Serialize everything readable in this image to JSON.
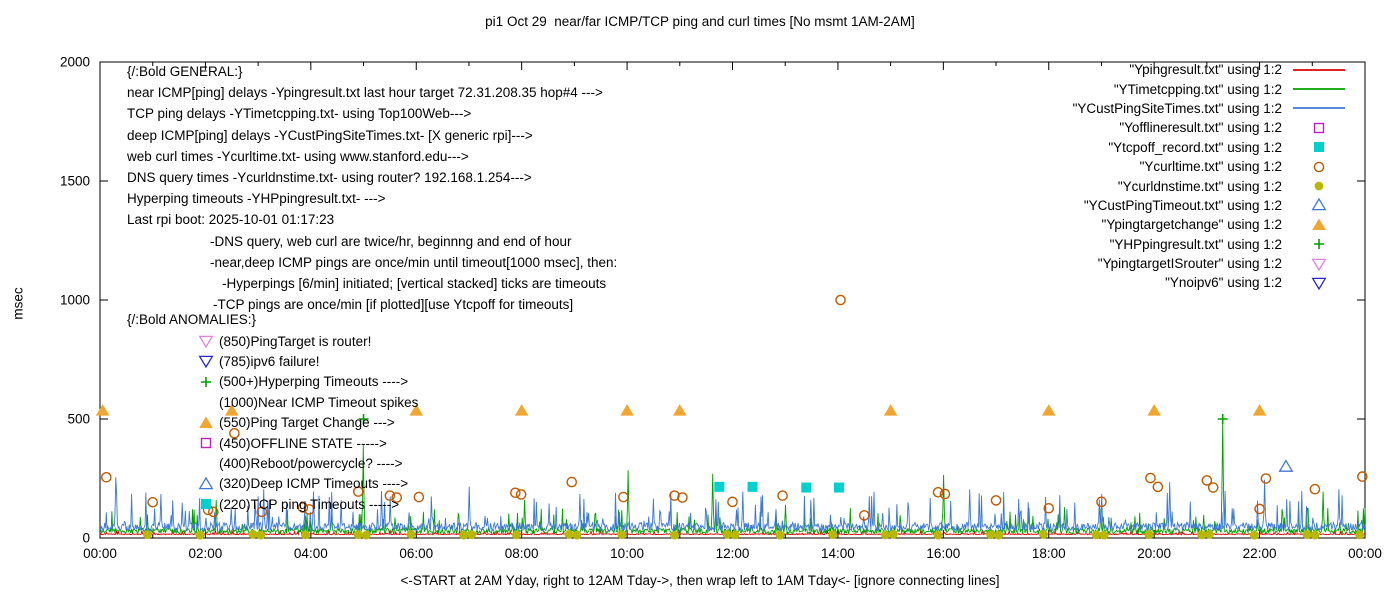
{
  "chart_data": {
    "type": "line+scatter",
    "title": "pi1 Oct 29  near/far ICMP/TCP ping and curl times [No msmt 1AM-2AM]",
    "xlabel": "<-START at 2AM Yday, right to 12AM Tday->, then wrap left to 1AM Tday<- [ignore connecting lines]",
    "ylabel": "msec",
    "x_range_hours": [
      0,
      24
    ],
    "x_tick_labels": [
      "00:00",
      "02:00",
      "04:00",
      "06:00",
      "08:00",
      "10:00",
      "12:00",
      "14:00",
      "16:00",
      "18:00",
      "20:00",
      "22:00",
      "00:00"
    ],
    "ylim": [
      0,
      2000
    ],
    "y_ticks": [
      0,
      500,
      1000,
      1500,
      2000
    ],
    "grid": false,
    "legend_position": "top-right",
    "line_series": [
      {
        "name": "Ypingresult.txt",
        "color": "#e00000",
        "baseline": 14,
        "noise": 8,
        "spikes": []
      },
      {
        "name": "YTimetcpping.txt",
        "color": "#00a000",
        "baseline": 18,
        "noise": 45,
        "spikes": [
          [
            2.2,
            160
          ],
          [
            5.0,
            390
          ],
          [
            8.05,
            160
          ],
          [
            10.02,
            285
          ],
          [
            11.62,
            270
          ],
          [
            13.0,
            140
          ],
          [
            16.0,
            265
          ],
          [
            18.3,
            130
          ],
          [
            21.3,
            500
          ],
          [
            23.2,
            195
          ]
        ]
      },
      {
        "name": "YCustPingSiteTimes.txt",
        "color": "#3c78d8",
        "baseline": 30,
        "noise": 70,
        "spikes": [
          [
            0.3,
            255
          ],
          [
            1.15,
            185
          ],
          [
            3.1,
            205
          ],
          [
            4.05,
            195
          ],
          [
            5.5,
            175
          ],
          [
            7.0,
            215
          ],
          [
            9.1,
            185
          ],
          [
            10.5,
            165
          ],
          [
            12.2,
            195
          ],
          [
            14.6,
            175
          ],
          [
            16.5,
            205
          ],
          [
            19.0,
            185
          ],
          [
            20.3,
            235
          ],
          [
            22.1,
            245
          ],
          [
            23.5,
            205
          ]
        ]
      }
    ],
    "scatter_series": [
      {
        "name": "Yofflineresult.txt",
        "marker": "square-open",
        "color": "#c020c0",
        "points": []
      },
      {
        "name": "Ytcpoff_record.txt",
        "marker": "square-filled",
        "color": "#00d0d0",
        "points": [
          [
            11.75,
            215
          ],
          [
            12.38,
            215
          ],
          [
            13.4,
            212
          ],
          [
            14.02,
            212
          ]
        ]
      },
      {
        "name": "Ycurltime.txt",
        "marker": "circle-open",
        "color": "#c05a00",
        "points": [
          [
            0.12,
            255
          ],
          [
            1.0,
            150
          ],
          [
            2.05,
            118
          ],
          [
            2.15,
            110
          ],
          [
            2.55,
            440
          ],
          [
            3.07,
            110
          ],
          [
            3.85,
            128
          ],
          [
            3.97,
            120
          ],
          [
            4.9,
            195
          ],
          [
            5.5,
            178
          ],
          [
            5.63,
            170
          ],
          [
            6.05,
            172
          ],
          [
            7.88,
            190
          ],
          [
            7.99,
            183
          ],
          [
            8.95,
            235
          ],
          [
            9.93,
            172
          ],
          [
            10.9,
            178
          ],
          [
            11.05,
            170
          ],
          [
            12.0,
            152
          ],
          [
            12.95,
            178
          ],
          [
            14.05,
            1000
          ],
          [
            14.5,
            95
          ],
          [
            15.9,
            192
          ],
          [
            16.03,
            185
          ],
          [
            17.0,
            158
          ],
          [
            18.0,
            125
          ],
          [
            19.0,
            152
          ],
          [
            19.93,
            252
          ],
          [
            20.07,
            215
          ],
          [
            21.0,
            242
          ],
          [
            21.12,
            212
          ],
          [
            22.0,
            122
          ],
          [
            22.12,
            250
          ],
          [
            23.05,
            205
          ],
          [
            23.95,
            258
          ]
        ]
      },
      {
        "name": "Ycurldnstime.txt",
        "marker": "circle-filled",
        "color": "#b8b800",
        "points": [
          [
            0.9,
            14
          ],
          [
            1.9,
            12
          ],
          [
            2.9,
            15
          ],
          [
            3.05,
            12
          ],
          [
            3.9,
            13
          ],
          [
            4.9,
            14
          ],
          [
            5.05,
            12
          ],
          [
            5.9,
            15
          ],
          [
            6.9,
            12
          ],
          [
            7.05,
            14
          ],
          [
            7.9,
            13
          ],
          [
            8.9,
            15
          ],
          [
            9.05,
            12
          ],
          [
            9.9,
            14
          ],
          [
            10.9,
            12
          ],
          [
            11.9,
            15
          ],
          [
            12.05,
            13
          ],
          [
            12.9,
            12
          ],
          [
            13.9,
            14
          ],
          [
            14.9,
            13
          ],
          [
            15.05,
            15
          ],
          [
            15.9,
            12
          ],
          [
            16.9,
            14
          ],
          [
            17.05,
            12
          ],
          [
            17.9,
            15
          ],
          [
            18.9,
            13
          ],
          [
            19.05,
            12
          ],
          [
            19.9,
            14
          ],
          [
            20.9,
            13
          ],
          [
            21.05,
            15
          ],
          [
            21.9,
            12
          ],
          [
            22.9,
            14
          ],
          [
            23.05,
            12
          ],
          [
            23.9,
            13
          ]
        ]
      },
      {
        "name": "YCustPingTimeout.txt",
        "marker": "triangle-open",
        "color": "#3c78d8",
        "points": [
          [
            22.5,
            300
          ]
        ]
      },
      {
        "name": "Ypingtargetchange",
        "marker": "triangle-filled",
        "color": "#f0a630",
        "points": [
          [
            0.05,
            535
          ],
          [
            2.5,
            535
          ],
          [
            6.0,
            535
          ],
          [
            8.0,
            535
          ],
          [
            10.0,
            535
          ],
          [
            11.0,
            535
          ],
          [
            15.0,
            535
          ],
          [
            18.0,
            535
          ],
          [
            20.0,
            535
          ],
          [
            22.0,
            535
          ]
        ]
      },
      {
        "name": "YHPpingresult.txt",
        "marker": "plus",
        "color": "#00a000",
        "points": [
          [
            5.0,
            500
          ],
          [
            21.3,
            500
          ]
        ]
      }
    ]
  },
  "legend": {
    "items": [
      {
        "label": "\"Ypingresult.txt\" using 1:2",
        "marker": "line",
        "color": "#e00000"
      },
      {
        "label": "\"YTimetcpping.txt\" using 1:2",
        "marker": "line",
        "color": "#00a000"
      },
      {
        "label": "\"YCustPingSiteTimes.txt\" using 1:2",
        "marker": "line",
        "color": "#3c78d8"
      },
      {
        "label": "\"Yofflineresult.txt\" using 1:2",
        "marker": "square-open",
        "color": "#c020c0"
      },
      {
        "label": "\"Ytcpoff_record.txt\" using 1:2",
        "marker": "square-filled",
        "color": "#00d0d0"
      },
      {
        "label": "\"Ycurltime.txt\" using 1:2",
        "marker": "circle-open",
        "color": "#c05a00"
      },
      {
        "label": "\"Ycurldnstime.txt\" using 1:2",
        "marker": "circle-filled",
        "color": "#b8b800"
      },
      {
        "label": "\"YCustPingTimeout.txt\" using 1:2",
        "marker": "triangle-open",
        "color": "#3c78d8"
      },
      {
        "label": "\"Ypingtargetchange\" using 1:2",
        "marker": "triangle-filled",
        "color": "#f0a630"
      },
      {
        "label": "\"YHPpingresult.txt\" using 1:2",
        "marker": "plus",
        "color": "#00a000"
      },
      {
        "label": "\"YpingtargetISrouter\" using 1:2",
        "marker": "triangle-down-open",
        "color": "#e080e0"
      },
      {
        "label": "\"Ynoipv6\" using 1:2",
        "marker": "triangle-down-open",
        "color": "#2828c8"
      }
    ]
  },
  "annotations": {
    "general": {
      "header": "{/:Bold GENERAL:}",
      "lines": [
        "near ICMP[ping] delays -Ypingresult.txt last hour target 72.31.208.35 hop#4 --->",
        "TCP ping delays -YTimetcpping.txt- using Top100Web--->",
        "deep ICMP[ping] delays -YCustPingSiteTimes.txt- [X generic rpi]--->",
        "web curl times -Ycurltime.txt- using www.stanford.edu--->",
        "DNS query times -Ycurldnstime.txt- using router? 192.168.1.254--->",
        "Hyperping timeouts -YHPpingresult.txt- --->",
        "Last rpi boot: 2025-10-01 01:17:23"
      ]
    },
    "notes": [
      "-DNS query, web curl are twice/hr, beginnng and end of hour",
      "-near,deep ICMP pings are once/min until timeout[1000 msec], then:",
      "-Hyperpings [6/min] initiated; [vertical stacked] ticks are timeouts",
      "-TCP pings are once/min [if plotted][use Ytcpoff for timeouts]"
    ],
    "anomalies": {
      "header": "{/:Bold ANOMALIES:}",
      "items": [
        {
          "marker": "triangle-down-open",
          "color": "#e080e0",
          "text": "(850)PingTarget is router!"
        },
        {
          "marker": "triangle-down-open",
          "color": "#2828c8",
          "text": "(785)ipv6 failure!"
        },
        {
          "marker": "plus",
          "color": "#00a000",
          "text": "(500+)Hyperping Timeouts ---->"
        },
        {
          "marker": null,
          "color": null,
          "text": "(1000)Near ICMP Timeout spikes"
        },
        {
          "marker": "triangle-filled",
          "color": "#f0a630",
          "text": "(550)Ping Target Change --->"
        },
        {
          "marker": "square-open",
          "color": "#c020c0",
          "text": "(450)OFFLINE STATE ----->"
        },
        {
          "marker": null,
          "color": null,
          "text": "(400)Reboot/powercycle? ---->"
        },
        {
          "marker": "triangle-open",
          "color": "#3c78d8",
          "text": "(320)Deep ICMP Timeouts ---->"
        },
        {
          "marker": "square-filled",
          "color": "#00d0d0",
          "text": "(220)TCP ping Timeouts ----->"
        }
      ]
    }
  }
}
